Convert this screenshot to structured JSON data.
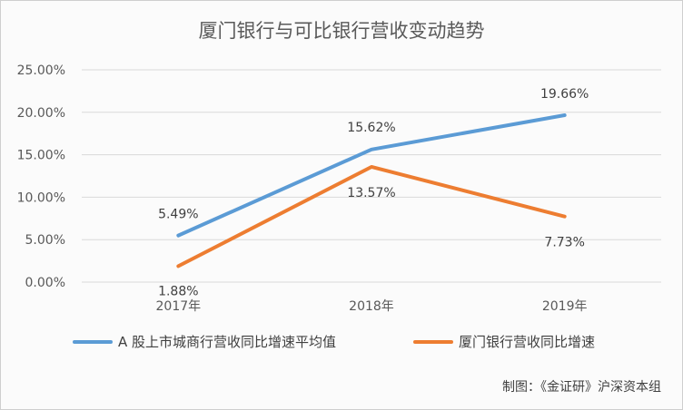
{
  "chart_data": {
    "type": "line",
    "title": "厦门银行与可比银行营收变动趋势",
    "categories": [
      "2017年",
      "2018年",
      "2019年"
    ],
    "yticks": [
      "0.00%",
      "5.00%",
      "10.00%",
      "15.00%",
      "20.00%",
      "25.00%"
    ],
    "ylim": [
      0,
      25
    ],
    "grid": true,
    "legend_position": "bottom",
    "series": [
      {
        "name": "A 股上市城商行营收同比增速平均值",
        "values": [
          5.49,
          15.62,
          19.66
        ],
        "labels": [
          "5.49%",
          "15.62%",
          "19.66%"
        ],
        "color": "#5b9bd5"
      },
      {
        "name": "厦门银行营收同比增速",
        "values": [
          1.88,
          13.57,
          7.73
        ],
        "labels": [
          "1.88%",
          "13.57%",
          "7.73%"
        ],
        "color": "#ed7d31"
      }
    ]
  },
  "source_note": "制图：《金证研》沪深资本组"
}
